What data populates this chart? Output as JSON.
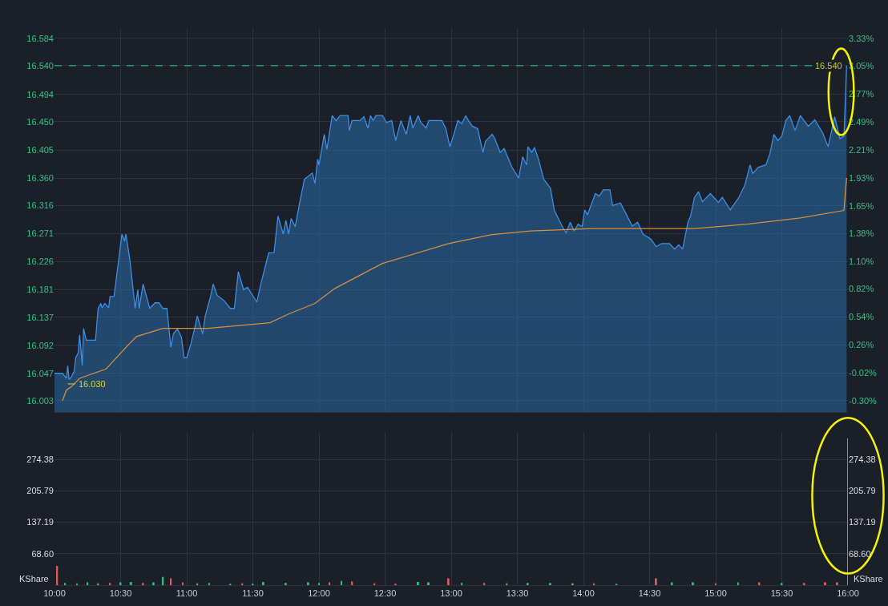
{
  "chart_data": [
    {
      "type": "area",
      "x": [
        10.0,
        10.06,
        10.09,
        10.1,
        10.11,
        10.13,
        10.15,
        10.16,
        10.18,
        10.19,
        10.21,
        10.22,
        10.24,
        10.31,
        10.33,
        10.35,
        10.36,
        10.38,
        10.41,
        10.42,
        10.45,
        10.48,
        10.51,
        10.53,
        10.54,
        10.57,
        10.61,
        10.63,
        10.64,
        10.67,
        10.72,
        10.76,
        10.79,
        10.82,
        10.85,
        10.88,
        10.9,
        10.93,
        10.96,
        10.98,
        11.0,
        11.03,
        11.06,
        11.08,
        11.12,
        11.14,
        11.18,
        11.2,
        11.23,
        11.28,
        11.33,
        11.36,
        11.39,
        11.43,
        11.46,
        11.53,
        11.56,
        11.62,
        11.66,
        11.69,
        11.73,
        11.75,
        11.77,
        11.79,
        11.82,
        11.85,
        11.89,
        11.95,
        11.97,
        11.99,
        12.0,
        12.04,
        12.06,
        12.1,
        12.13,
        12.16,
        12.22,
        12.23,
        12.25,
        12.31,
        12.34,
        12.37,
        12.39,
        12.41,
        12.43,
        12.48,
        12.51,
        12.55,
        12.58,
        12.62,
        12.66,
        12.69,
        12.71,
        12.75,
        12.77,
        12.81,
        12.83,
        12.93,
        12.96,
        12.99,
        13.02,
        13.05,
        13.08,
        13.11,
        13.13,
        13.16,
        13.2,
        13.24,
        13.26,
        13.31,
        13.33,
        13.37,
        13.4,
        13.46,
        13.51,
        13.54,
        13.57,
        13.58,
        13.61,
        13.63,
        13.66,
        13.7,
        13.75,
        13.78,
        13.84,
        13.87,
        13.9,
        13.93,
        13.96,
        13.99,
        14.01,
        14.03,
        14.09,
        14.12,
        14.15,
        14.2,
        14.22,
        14.28,
        14.34,
        14.37,
        14.41,
        14.45,
        14.51,
        14.55,
        14.59,
        14.65,
        14.69,
        14.72,
        14.75,
        14.79,
        14.81,
        14.84,
        14.87,
        14.9,
        14.96,
        15.02,
        15.05,
        15.11,
        15.17,
        15.22,
        15.26,
        15.28,
        15.32,
        15.38,
        15.41,
        15.44,
        15.47,
        15.5,
        15.53,
        15.56,
        15.6,
        15.64,
        15.7,
        15.75,
        15.81,
        15.85,
        15.9,
        15.94,
        15.97,
        15.99
      ],
      "series": [
        {
          "type": "area",
          "color": "#3d8ee6",
          "values": [
            16.047,
            16.047,
            16.039,
            16.059,
            16.037,
            16.042,
            16.051,
            16.072,
            16.08,
            16.109,
            16.06,
            16.119,
            16.1,
            16.1,
            16.151,
            16.159,
            16.152,
            16.159,
            16.152,
            16.17,
            16.17,
            16.22,
            16.27,
            16.259,
            16.27,
            16.229,
            16.151,
            16.181,
            16.151,
            16.19,
            16.151,
            16.16,
            16.16,
            16.151,
            16.151,
            16.089,
            16.111,
            16.118,
            16.105,
            16.072,
            16.072,
            16.093,
            16.119,
            16.139,
            16.11,
            16.139,
            16.17,
            16.19,
            16.172,
            16.164,
            16.151,
            16.151,
            16.21,
            16.181,
            16.185,
            16.161,
            16.19,
            16.24,
            16.24,
            16.299,
            16.27,
            16.292,
            16.27,
            16.295,
            16.282,
            16.316,
            16.358,
            16.368,
            16.351,
            16.39,
            16.381,
            16.43,
            16.406,
            16.46,
            16.452,
            16.46,
            16.46,
            16.436,
            16.452,
            16.452,
            16.458,
            16.44,
            16.46,
            16.452,
            16.46,
            16.46,
            16.449,
            16.452,
            16.42,
            16.452,
            16.43,
            16.46,
            16.44,
            16.46,
            16.449,
            16.44,
            16.452,
            16.452,
            16.439,
            16.41,
            16.43,
            16.452,
            16.447,
            16.46,
            16.452,
            16.443,
            16.439,
            16.401,
            16.419,
            16.43,
            16.423,
            16.401,
            16.407,
            16.377,
            16.36,
            16.394,
            16.381,
            16.41,
            16.401,
            16.409,
            16.39,
            16.358,
            16.344,
            16.308,
            16.282,
            16.272,
            16.289,
            16.275,
            16.286,
            16.282,
            16.309,
            16.301,
            16.335,
            16.331,
            16.341,
            16.341,
            16.316,
            16.32,
            16.295,
            16.283,
            16.289,
            16.27,
            16.262,
            16.25,
            16.255,
            16.255,
            16.246,
            16.253,
            16.246,
            16.289,
            16.299,
            16.329,
            16.338,
            16.322,
            16.335,
            16.321,
            16.329,
            16.309,
            16.327,
            16.348,
            16.381,
            16.367,
            16.377,
            16.381,
            16.399,
            16.43,
            16.42,
            16.427,
            16.452,
            16.46,
            16.436,
            16.46,
            16.443,
            16.453,
            16.432,
            16.41,
            16.458,
            16.423,
            16.427,
            16.54
          ]
        },
        {
          "type": "line",
          "color": "#d98f3f",
          "x": [
            10.06,
            10.09,
            10.13,
            10.19,
            10.39,
            10.56,
            10.62,
            10.82,
            11.16,
            11.63,
            11.77,
            11.97,
            12.12,
            12.48,
            12.98,
            13.3,
            13.6,
            14.07,
            14.43,
            14.84,
            15.24,
            15.64,
            15.97,
            15.99
          ],
          "values": [
            16.003,
            16.02,
            16.026,
            16.039,
            16.054,
            16.093,
            16.106,
            16.119,
            16.119,
            16.128,
            16.142,
            16.159,
            16.183,
            16.223,
            16.255,
            16.269,
            16.275,
            16.279,
            16.279,
            16.279,
            16.286,
            16.296,
            16.308,
            16.36
          ]
        }
      ],
      "xlim": [
        10.0,
        16.0
      ],
      "xticks": [
        {
          "value": 10.0,
          "label": null
        },
        {
          "value": 10.5,
          "label": null
        },
        {
          "value": 11.0,
          "label": null
        },
        {
          "value": 11.5,
          "label": null
        },
        {
          "value": 12.0,
          "label": null
        },
        {
          "value": 12.5,
          "label": null
        },
        {
          "value": 13.0,
          "label": null
        },
        {
          "value": 13.5,
          "label": null
        },
        {
          "value": 14.0,
          "label": null
        },
        {
          "value": 14.5,
          "label": null
        },
        {
          "value": 15.0,
          "label": null
        },
        {
          "value": 15.5,
          "label": null
        },
        {
          "value": 16.0,
          "label": null
        }
      ],
      "ylim": [
        15.985,
        16.6
      ],
      "yticks": [
        16.003,
        16.047,
        16.092,
        16.137,
        16.181,
        16.226,
        16.271,
        16.316,
        {
          "value": 16.36,
          "label": "16.360"
        },
        16.405,
        {
          "value": 16.45,
          "label": "16.450"
        },
        16.494,
        {
          "value": 16.54,
          "label": "16.540"
        },
        16.584
      ],
      "y2lim": [
        -0.41,
        3.43
      ],
      "y2ticks": [
        {
          "value": -0.3,
          "label": "-0.30%"
        },
        {
          "value": -0.02,
          "label": "-0.02%"
        },
        {
          "value": 0.26,
          "label": "0.26%"
        },
        {
          "value": 0.54,
          "label": "0.54%"
        },
        {
          "value": 0.82,
          "label": "0.82%"
        },
        {
          "value": 1.1,
          "label": "1.10%"
        },
        {
          "value": 1.38,
          "label": "1.38%"
        },
        {
          "value": 1.65,
          "label": "1.65%"
        },
        {
          "value": 1.93,
          "label": "1.93%"
        },
        {
          "value": 2.21,
          "label": "2.21%"
        },
        {
          "value": 2.49,
          "label": "2.49%"
        },
        {
          "value": 2.77,
          "label": "2.77%"
        },
        {
          "value": 3.05,
          "label": "3.05%"
        },
        {
          "value": 3.33,
          "label": "3.33%"
        }
      ],
      "ref_lines": [
        {
          "axis": "y",
          "value": 16.54,
          "label": "16.540",
          "color": "#2fd39a",
          "line_style": "dashed"
        }
      ],
      "annotations": [
        {
          "text": "16.030",
          "x": 10.1,
          "y": 16.03
        }
      ],
      "grid": true,
      "tick_labels": "y",
      "marker": "none"
    },
    {
      "type": "bar",
      "x": [
        10.02,
        10.08,
        10.17,
        10.25,
        10.33,
        10.42,
        10.5,
        10.58,
        10.67,
        10.75,
        10.82,
        10.88,
        10.97,
        11.08,
        11.17,
        11.33,
        11.42,
        11.5,
        11.58,
        11.75,
        11.92,
        12.0,
        12.08,
        12.17,
        12.25,
        12.42,
        12.58,
        12.75,
        12.83,
        12.98,
        13.08,
        13.25,
        13.42,
        13.58,
        13.75,
        13.92,
        14.08,
        14.25,
        14.55,
        14.67,
        14.83,
        15.0,
        15.17,
        15.33,
        15.5,
        15.67,
        15.83,
        15.92,
        16.0
      ],
      "values": [
        42,
        5,
        4,
        6,
        4,
        5,
        6,
        7,
        5,
        6,
        18,
        15,
        6,
        4,
        5,
        3,
        4,
        3,
        7,
        5,
        6,
        5,
        6,
        9,
        8,
        4,
        3,
        7,
        6,
        15,
        5,
        5,
        4,
        5,
        5,
        4,
        4,
        3,
        15,
        6,
        6,
        4,
        6,
        6,
        5,
        5,
        6,
        6,
        321
      ],
      "colors": [
        "#e05a5a",
        "#2bc07e",
        "#2bc07e",
        "#2bc07e",
        "#2bc07e",
        "#e05a5a",
        "#2bc07e",
        "#2bc07e",
        "#e05a5a",
        "#2bc07e",
        "#2bc07e",
        "#e05a5a",
        "#e05a5a",
        "#2bc07e",
        "#2bc07e",
        "#2bc07e",
        "#e05a5a",
        "#2bc07e",
        "#2bc07e",
        "#2bc07e",
        "#2bc07e",
        "#2bc07e",
        "#e05a5a",
        "#2bc07e",
        "#e05a5a",
        "#e05a5a",
        "#e05a5a",
        "#2bc07e",
        "#2bc07e",
        "#e05a5a",
        "#2bc07e",
        "#e05a5a",
        "#2bc07e",
        "#2bc07e",
        "#2bc07e",
        "#2bc07e",
        "#e05a5a",
        "#2bc07e",
        "#e05a5a",
        "#2bc07e",
        "#2bc07e",
        "#e05a5a",
        "#2bc07e",
        "#e05a5a",
        "#2bc07e",
        "#e05a5a",
        "#e05a5a",
        "#e05a5a",
        "#2bc07e"
      ],
      "xlim": [
        10.0,
        16.0
      ],
      "xticks": [
        {
          "value": 10.0,
          "label": "10:00"
        },
        {
          "value": 10.5,
          "label": "10:30"
        },
        {
          "value": 11.0,
          "label": "11:00"
        },
        {
          "value": 11.5,
          "label": "11:30"
        },
        {
          "value": 12.0,
          "label": "12:00"
        },
        {
          "value": 12.5,
          "label": "12:30"
        },
        {
          "value": 13.0,
          "label": "13:00"
        },
        {
          "value": 13.5,
          "label": "13:30"
        },
        {
          "value": 14.0,
          "label": "14:00"
        },
        {
          "value": 14.5,
          "label": "14:30"
        },
        {
          "value": 15.0,
          "label": "15:00"
        },
        {
          "value": 15.5,
          "label": "15:30"
        },
        {
          "value": 16.0,
          "label": "16:00"
        }
      ],
      "ylim": [
        0,
        334
      ],
      "yticks": [
        {
          "value": 68.6,
          "label": "68.60"
        },
        137.19,
        205.79,
        274.38
      ],
      "y2lim": [
        0,
        334
      ],
      "y2ticks": [
        {
          "value": 68.6,
          "label": "68.60"
        },
        137.19,
        205.79,
        274.38
      ],
      "ylabel": "KShare",
      "y2label": "KShare",
      "grid": true
    }
  ]
}
